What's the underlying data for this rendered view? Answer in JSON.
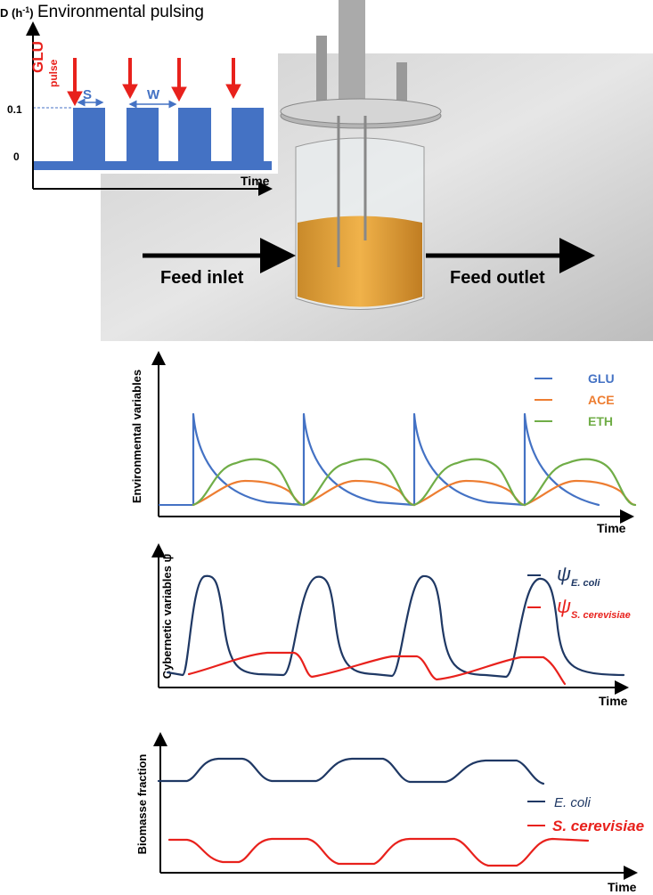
{
  "pulse_plot": {
    "title": "Environmental pulsing",
    "y_label": {
      "text": "D (h",
      "sup": "-1",
      "close": ")"
    },
    "ticks": [
      "0.1",
      "0"
    ],
    "pulse_label": {
      "text": "GLU",
      "sub": "pulse"
    },
    "s_label": "S",
    "w_label": "W",
    "x_label": "Time"
  },
  "reactor": {
    "inlet": "Feed inlet",
    "outlet": "Feed outlet"
  },
  "panels": [
    {
      "y_label": "Environmental variables",
      "x_label": "Time",
      "legend": [
        {
          "text": "GLU",
          "color": "#4472c4"
        },
        {
          "text": "ACE",
          "color": "#ed7d31"
        },
        {
          "text": "ETH",
          "color": "#70ad47"
        }
      ]
    },
    {
      "y_label": "Cybernetic variables ψ",
      "x_label": "Time",
      "legend": [
        {
          "symbol": "ψ",
          "sub": "E. coli",
          "color": "#1f3864"
        },
        {
          "symbol": "ψ",
          "sub": "S. cerevisiae",
          "color": "#e8211c"
        }
      ]
    },
    {
      "y_label": "Biomasse fraction",
      "x_label": "Time",
      "legend": [
        {
          "text": "E. coli",
          "color": "#1f3864"
        },
        {
          "text": "S. cerevisiae",
          "color": "#e8211c"
        }
      ]
    }
  ]
}
